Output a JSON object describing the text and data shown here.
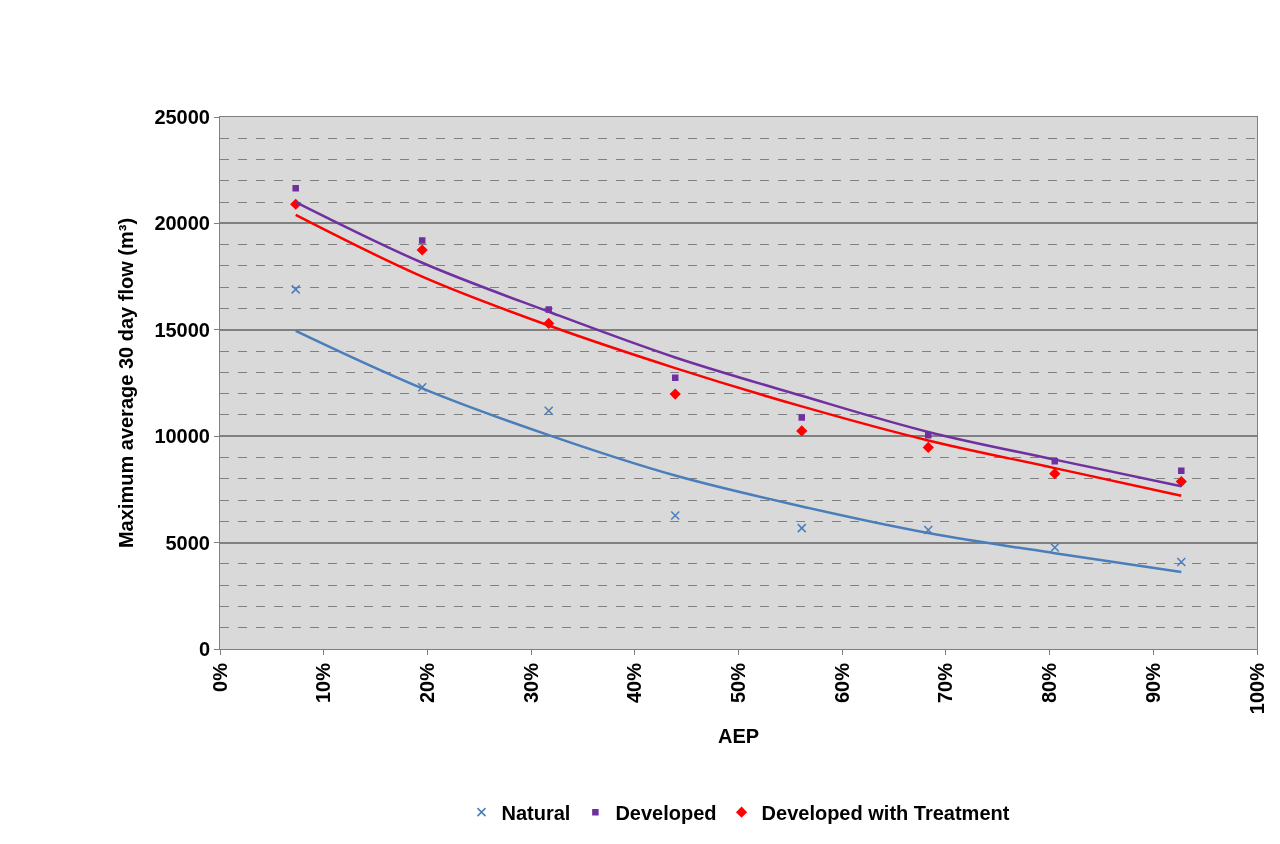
{
  "chart_data": {
    "type": "scatter",
    "xlabel": "AEP",
    "ylabel": "Maximum average 30 day flow (m³)",
    "x": [
      7.3,
      19.5,
      31.7,
      43.9,
      56.1,
      68.3,
      80.5,
      92.7
    ],
    "series": [
      {
        "name": "Natural",
        "color": "#4a7ebb",
        "marker": "cross",
        "values": [
          16900,
          12300,
          11200,
          6270,
          5680,
          5590,
          4770,
          4090
        ]
      },
      {
        "name": "Developed",
        "color": "#7030a0",
        "marker": "square",
        "values": [
          21650,
          19200,
          15950,
          12750,
          10880,
          10040,
          8820,
          8380
        ]
      },
      {
        "name": "Developed with Treatment",
        "color": "#ff0000",
        "marker": "diamond",
        "values": [
          20900,
          18750,
          15300,
          11980,
          10250,
          9470,
          8240,
          7870
        ]
      },
      {
        "type": "line",
        "color": "#4a7ebb",
        "values": [
          14950,
          12250,
          10050,
          8150,
          6700,
          5450,
          4500,
          3620
        ]
      },
      {
        "type": "line",
        "color": "#7030a0",
        "values": [
          21000,
          18150,
          15850,
          13700,
          11900,
          10200,
          8900,
          7650
        ]
      },
      {
        "type": "line",
        "color": "#ff0000",
        "values": [
          20400,
          17500,
          15200,
          13200,
          11400,
          9800,
          8500,
          7200
        ]
      }
    ],
    "xlim": [
      0,
      100
    ],
    "xticks": [
      {
        "value": 0,
        "label": "0%"
      },
      {
        "value": 10,
        "label": "10%"
      },
      {
        "value": 20,
        "label": "20%"
      },
      {
        "value": 30,
        "label": "30%"
      },
      {
        "value": 40,
        "label": "40%"
      },
      {
        "value": 50,
        "label": "50%"
      },
      {
        "value": 60,
        "label": "60%"
      },
      {
        "value": 70,
        "label": "70%"
      },
      {
        "value": 80,
        "label": "80%"
      },
      {
        "value": 90,
        "label": "90%"
      },
      {
        "value": 100,
        "label": "100%"
      }
    ],
    "ylim": [
      0,
      25000
    ],
    "yticks": [
      0,
      5000,
      10000,
      15000,
      20000,
      25000
    ],
    "grid": "y",
    "legend": "bottom"
  }
}
